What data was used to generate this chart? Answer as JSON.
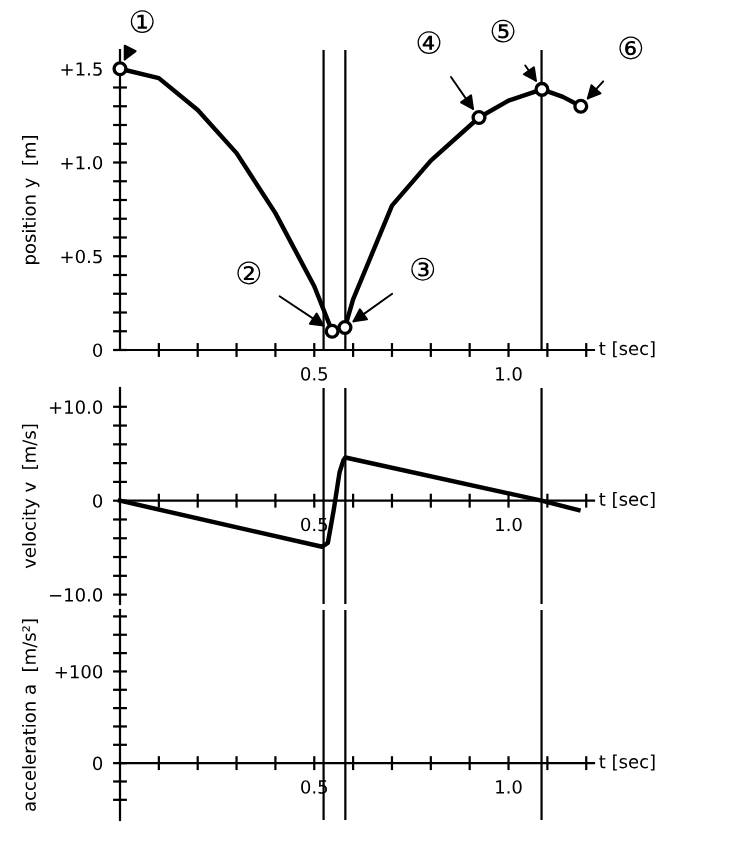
{
  "chart_data": [
    {
      "type": "line",
      "ylabel": "position y  [m]",
      "xlabel": "t [sec]",
      "series": [
        {
          "color": "#000000",
          "marker": "none",
          "x": [
            0,
            0.1,
            0.2,
            0.3,
            0.4,
            0.5,
            0.546,
            0.579,
            0.6,
            0.7,
            0.8,
            0.924,
            1.0,
            1.086,
            1.14,
            1.186
          ],
          "values": [
            1.5,
            1.45,
            1.28,
            1.05,
            0.73,
            0.34,
            0.1,
            0.12,
            0.27,
            0.77,
            1.01,
            1.24,
            1.33,
            1.39,
            1.35,
            1.3
          ]
        },
        {
          "type": "scatter",
          "color": "#000000",
          "marker": "circle",
          "x": [
            0,
            0.546,
            0.579,
            0.924,
            1.086,
            1.186
          ],
          "values": [
            1.5,
            0.1,
            0.12,
            1.24,
            1.39,
            1.3
          ]
        }
      ],
      "annotations": [
        {
          "text": "①",
          "x": 0,
          "y": 1.5
        },
        {
          "text": "②",
          "x": 0.546,
          "y": 0.1
        },
        {
          "text": "③",
          "x": 0.579,
          "y": 0.12
        },
        {
          "text": "④",
          "x": 0.924,
          "y": 1.24
        },
        {
          "text": "⑤",
          "x": 1.086,
          "y": 1.39
        },
        {
          "text": "⑥",
          "x": 1.186,
          "y": 1.3
        }
      ],
      "xlim": [
        0,
        1.22
      ],
      "ylim": [
        0,
        1.6
      ],
      "xticks": [
        {
          "value": 0.1,
          "label": null
        },
        {
          "value": 0.2,
          "label": null
        },
        {
          "value": 0.3,
          "label": null
        },
        {
          "value": 0.4,
          "label": null
        },
        {
          "value": 0.5,
          "label": "0.5"
        },
        {
          "value": 0.6,
          "label": null
        },
        {
          "value": 0.7,
          "label": null
        },
        {
          "value": 0.8,
          "label": null
        },
        {
          "value": 0.9,
          "label": null
        },
        {
          "value": 1.0,
          "label": "1.0"
        },
        {
          "value": 1.1,
          "label": null
        },
        {
          "value": 1.2,
          "label": null
        }
      ],
      "yticks": [
        0,
        {
          "value": 0.1,
          "label": null
        },
        {
          "value": 0.2,
          "label": null
        },
        {
          "value": 0.3,
          "label": null
        },
        {
          "value": 0.4,
          "label": null
        },
        {
          "value": 0.5,
          "label": "+0.5"
        },
        {
          "value": 0.6,
          "label": null
        },
        {
          "value": 0.7,
          "label": null
        },
        {
          "value": 0.8,
          "label": null
        },
        {
          "value": 0.9,
          "label": null
        },
        {
          "value": 1.0,
          "label": "+1.0"
        },
        {
          "value": 1.1,
          "label": null
        },
        {
          "value": 1.2,
          "label": null
        },
        {
          "value": 1.3,
          "label": null
        },
        {
          "value": 1.4,
          "label": null
        },
        {
          "value": 1.5,
          "label": "+1.5"
        }
      ],
      "ref_lines": [
        {
          "axis": "x",
          "value": 0.524,
          "label": null
        },
        {
          "axis": "x",
          "value": 0.58,
          "label": null
        },
        {
          "axis": "x",
          "value": 1.085,
          "label": null
        }
      ],
      "line_style": "solid"
    },
    {
      "type": "line",
      "ylabel": "velocity v  [m/s]",
      "xlabel": "t [sec]",
      "series": [
        {
          "color": "#000000",
          "marker": "none",
          "x": [
            0,
            0.52,
            0.535,
            0.55,
            0.565,
            0.575,
            0.58,
            1.085,
            1.18
          ],
          "values": [
            0,
            -4.9,
            -4.5,
            -1,
            3,
            4.3,
            4.6,
            0,
            -1.0
          ]
        }
      ],
      "xlim": [
        0,
        1.22
      ],
      "ylim": [
        -11,
        12
      ],
      "xticks": [
        {
          "value": 0.1,
          "label": null
        },
        {
          "value": 0.2,
          "label": null
        },
        {
          "value": 0.3,
          "label": null
        },
        {
          "value": 0.4,
          "label": null
        },
        {
          "value": 0.5,
          "label": "0.5"
        },
        {
          "value": 0.6,
          "label": null
        },
        {
          "value": 0.7,
          "label": null
        },
        {
          "value": 0.8,
          "label": null
        },
        {
          "value": 0.9,
          "label": null
        },
        {
          "value": 1.0,
          "label": "1.0"
        },
        {
          "value": 1.1,
          "label": null
        },
        {
          "value": 1.2,
          "label": null
        }
      ],
      "yticks": [
        {
          "value": -10,
          "label": "−10.0"
        },
        {
          "value": -8,
          "label": null
        },
        {
          "value": -6,
          "label": null
        },
        {
          "value": -4,
          "label": null
        },
        {
          "value": -2,
          "label": null
        },
        0,
        {
          "value": 2,
          "label": null
        },
        {
          "value": 4,
          "label": null
        },
        {
          "value": 6,
          "label": null
        },
        {
          "value": 8,
          "label": null
        },
        {
          "value": 10,
          "label": "+10.0"
        }
      ],
      "ref_lines": [
        {
          "axis": "x",
          "value": 0.524,
          "label": null
        },
        {
          "axis": "x",
          "value": 0.58,
          "label": null
        },
        {
          "axis": "x",
          "value": 1.085,
          "label": null
        }
      ],
      "line_style": "solid"
    },
    {
      "type": "line",
      "ylabel": "acceleration a  [m/s²]",
      "xlabel": "t [sec]",
      "xlim": [
        0,
        1.22
      ],
      "ylim": [
        -62,
        167
      ],
      "xticks": [
        {
          "value": 0.1,
          "label": null
        },
        {
          "value": 0.2,
          "label": null
        },
        {
          "value": 0.3,
          "label": null
        },
        {
          "value": 0.4,
          "label": null
        },
        {
          "value": 0.5,
          "label": "0.5"
        },
        {
          "value": 0.6,
          "label": null
        },
        {
          "value": 0.7,
          "label": null
        },
        {
          "value": 0.8,
          "label": null
        },
        {
          "value": 0.9,
          "label": null
        },
        {
          "value": 1.0,
          "label": "1.0"
        },
        {
          "value": 1.1,
          "label": null
        },
        {
          "value": 1.2,
          "label": null
        }
      ],
      "yticks": [
        {
          "value": -40,
          "label": null
        },
        {
          "value": -20,
          "label": null
        },
        0,
        {
          "value": 20,
          "label": null
        },
        {
          "value": 40,
          "label": null
        },
        {
          "value": 60,
          "label": null
        },
        {
          "value": 80,
          "label": null
        },
        {
          "value": 100,
          "label": "+100"
        },
        {
          "value": 120,
          "label": null
        },
        {
          "value": 140,
          "label": null
        },
        {
          "value": 160,
          "label": null
        }
      ],
      "ref_lines": [
        {
          "axis": "x",
          "value": 0.524,
          "label": null
        },
        {
          "axis": "x",
          "value": 0.58,
          "label": null
        },
        {
          "axis": "x",
          "value": 1.085,
          "label": null
        }
      ]
    }
  ]
}
